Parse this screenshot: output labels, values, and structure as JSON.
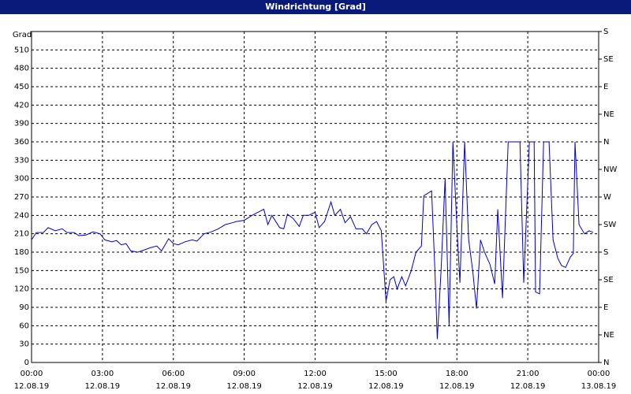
{
  "chart_data": {
    "type": "line",
    "title": "Windrichtung [Grad]",
    "ylabel": "Grad",
    "x": [
      0,
      0.2,
      0.5,
      0.7,
      1.0,
      1.3,
      1.5,
      1.8,
      2.0,
      2.3,
      2.6,
      2.9,
      3.1,
      3.4,
      3.6,
      3.8,
      4.0,
      4.2,
      4.5,
      4.8,
      5.0,
      5.3,
      5.5,
      5.8,
      6.0,
      6.2,
      6.5,
      6.8,
      7.0,
      7.3,
      7.6,
      7.9,
      8.2,
      8.5,
      8.67,
      9.0,
      9.33,
      9.83,
      10.0,
      10.17,
      10.5,
      10.67,
      10.83,
      11.07,
      11.33,
      11.5,
      11.73,
      12.0,
      12.17,
      12.4,
      12.67,
      12.83,
      13.07,
      13.27,
      13.5,
      13.73,
      14.0,
      14.17,
      14.4,
      14.6,
      14.8,
      15.0,
      15.17,
      15.33,
      15.47,
      15.67,
      15.83,
      16.07,
      16.27,
      16.5,
      16.6,
      16.93,
      17.07,
      17.17,
      17.33,
      17.5,
      17.67,
      17.83,
      18.0,
      18.13,
      18.33,
      18.5,
      18.67,
      18.83,
      19.0,
      19.17,
      19.4,
      19.6,
      19.73,
      19.93,
      20.17,
      20.67,
      20.83,
      21.07,
      21.27,
      21.33,
      21.5,
      21.67,
      21.9,
      22.07,
      22.27,
      22.43,
      22.6,
      22.8,
      22.93,
      23.0,
      23.17,
      23.4,
      23.6,
      23.77
    ],
    "values": [
      200,
      212,
      212,
      220,
      215,
      218,
      212,
      212,
      207,
      208,
      213,
      210,
      200,
      197,
      199,
      192,
      194,
      182,
      180,
      184,
      187,
      190,
      182,
      202,
      194,
      192,
      197,
      200,
      198,
      210,
      213,
      218,
      225,
      228,
      230,
      232,
      240,
      250,
      225,
      240,
      220,
      218,
      242,
      235,
      222,
      240,
      240,
      245,
      220,
      230,
      262,
      240,
      250,
      228,
      238,
      218,
      218,
      210,
      225,
      230,
      215,
      100,
      135,
      140,
      120,
      140,
      125,
      150,
      180,
      190,
      272,
      280,
      150,
      38,
      150,
      300,
      60,
      360,
      220,
      130,
      360,
      200,
      150,
      88,
      200,
      180,
      160,
      128,
      250,
      105,
      360,
      360,
      130,
      360,
      360,
      115,
      112,
      360,
      360,
      200,
      170,
      158,
      155,
      172,
      178,
      360,
      225,
      210,
      215,
      212
    ],
    "color": "#0000c8",
    "xlim": [
      0,
      24
    ],
    "xticks": [
      {
        "value": 0,
        "label": "00:00",
        "date": "12.08.19"
      },
      {
        "value": 3,
        "label": "03:00",
        "date": "12.08.19"
      },
      {
        "value": 6,
        "label": "06:00",
        "date": "12.08.19"
      },
      {
        "value": 9,
        "label": "09:00",
        "date": "12.08.19"
      },
      {
        "value": 12,
        "label": "12:00",
        "date": "12.08.19"
      },
      {
        "value": 15,
        "label": "15:00",
        "date": "12.08.19"
      },
      {
        "value": 18,
        "label": "18:00",
        "date": "12.08.19"
      },
      {
        "value": 21,
        "label": "21:00",
        "date": "12.08.19"
      },
      {
        "value": 24,
        "label": "00:00",
        "date": "13.08.19"
      }
    ],
    "ylim": [
      0,
      540
    ],
    "yticks": [
      0,
      30,
      60,
      90,
      120,
      150,
      180,
      210,
      240,
      270,
      300,
      330,
      360,
      390,
      420,
      450,
      480,
      510
    ],
    "y2lim": [
      0,
      540
    ],
    "y2ticks": [
      {
        "value": 0,
        "label": "N"
      },
      {
        "value": 45,
        "label": "NE"
      },
      {
        "value": 90,
        "label": "E"
      },
      {
        "value": 135,
        "label": "SE"
      },
      {
        "value": 180,
        "label": "S"
      },
      {
        "value": 225,
        "label": "SW"
      },
      {
        "value": 270,
        "label": "W"
      },
      {
        "value": 315,
        "label": "NW"
      },
      {
        "value": 360,
        "label": "N"
      },
      {
        "value": 405,
        "label": "NE"
      },
      {
        "value": 450,
        "label": "E"
      },
      {
        "value": 495,
        "label": "SE"
      },
      {
        "value": 540,
        "label": "S"
      }
    ],
    "grid": true
  }
}
